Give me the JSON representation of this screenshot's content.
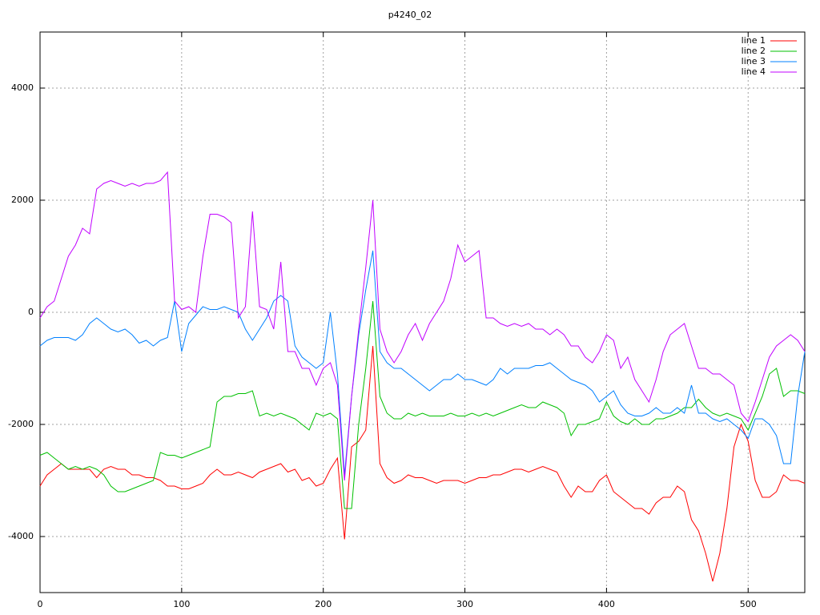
{
  "chart_data": {
    "type": "line",
    "title": "p4240_02",
    "x": [
      0,
      5,
      10,
      15,
      20,
      25,
      30,
      35,
      40,
      45,
      50,
      55,
      60,
      65,
      70,
      75,
      80,
      85,
      90,
      95,
      100,
      105,
      110,
      115,
      120,
      125,
      130,
      135,
      140,
      145,
      150,
      155,
      160,
      165,
      170,
      175,
      180,
      185,
      190,
      195,
      200,
      205,
      210,
      215,
      220,
      225,
      230,
      235,
      240,
      245,
      250,
      255,
      260,
      265,
      270,
      275,
      280,
      285,
      290,
      295,
      300,
      305,
      310,
      315,
      320,
      325,
      330,
      335,
      340,
      345,
      350,
      355,
      360,
      365,
      370,
      375,
      380,
      385,
      390,
      395,
      400,
      405,
      410,
      415,
      420,
      425,
      430,
      435,
      440,
      445,
      450,
      455,
      460,
      465,
      470,
      475,
      480,
      485,
      490,
      495,
      500,
      505,
      510,
      515,
      520,
      525,
      530,
      535,
      540
    ],
    "series": [
      {
        "name": "line 1",
        "color": "#ff0000",
        "values": [
          -3100,
          -2900,
          -2800,
          -2700,
          -2800,
          -2800,
          -2800,
          -2800,
          -2950,
          -2800,
          -2750,
          -2800,
          -2800,
          -2900,
          -2900,
          -2950,
          -2950,
          -3000,
          -3100,
          -3100,
          -3150,
          -3150,
          -3100,
          -3050,
          -2900,
          -2800,
          -2900,
          -2900,
          -2850,
          -2900,
          -2950,
          -2850,
          -2800,
          -2750,
          -2700,
          -2850,
          -2800,
          -3000,
          -2950,
          -3100,
          -3050,
          -2800,
          -2600,
          -4050,
          -2400,
          -2300,
          -2100,
          -600,
          -2700,
          -2950,
          -3050,
          -3000,
          -2900,
          -2950,
          -2950,
          -3000,
          -3050,
          -3000,
          -3000,
          -3000,
          -3050,
          -3000,
          -2950,
          -2950,
          -2900,
          -2900,
          -2850,
          -2800,
          -2800,
          -2850,
          -2800,
          -2750,
          -2800,
          -2850,
          -3100,
          -3300,
          -3100,
          -3200,
          -3200,
          -3000,
          -2900,
          -3200,
          -3300,
          -3400,
          -3500,
          -3500,
          -3600,
          -3400,
          -3300,
          -3300,
          -3100,
          -3200,
          -3700,
          -3900,
          -4300,
          -4800,
          -4300,
          -3500,
          -2400,
          -2000,
          -2300,
          -3000,
          -3300,
          -3300,
          -3200,
          -2900,
          -3000,
          -3000,
          -3050
        ]
      },
      {
        "name": "line 2",
        "color": "#00c000",
        "values": [
          -2550,
          -2500,
          -2600,
          -2700,
          -2800,
          -2750,
          -2800,
          -2750,
          -2800,
          -2900,
          -3100,
          -3200,
          -3200,
          -3150,
          -3100,
          -3050,
          -3000,
          -2500,
          -2550,
          -2550,
          -2600,
          -2550,
          -2500,
          -2450,
          -2400,
          -1600,
          -1500,
          -1500,
          -1450,
          -1450,
          -1400,
          -1850,
          -1800,
          -1850,
          -1800,
          -1850,
          -1900,
          -2000,
          -2100,
          -1800,
          -1850,
          -1800,
          -1900,
          -3500,
          -3500,
          -2000,
          -1000,
          200,
          -1500,
          -1800,
          -1900,
          -1900,
          -1800,
          -1850,
          -1800,
          -1850,
          -1850,
          -1850,
          -1800,
          -1850,
          -1850,
          -1800,
          -1850,
          -1800,
          -1850,
          -1800,
          -1750,
          -1700,
          -1650,
          -1700,
          -1700,
          -1600,
          -1650,
          -1700,
          -1800,
          -2200,
          -2000,
          -2000,
          -1950,
          -1900,
          -1600,
          -1850,
          -1950,
          -2000,
          -1900,
          -2000,
          -2000,
          -1900,
          -1900,
          -1850,
          -1800,
          -1700,
          -1700,
          -1550,
          -1700,
          -1800,
          -1850,
          -1800,
          -1850,
          -1900,
          -2100,
          -1800,
          -1500,
          -1100,
          -1000,
          -1500,
          -1400,
          -1400,
          -1450
        ]
      },
      {
        "name": "line 3",
        "color": "#0080ff",
        "values": [
          -600,
          -500,
          -450,
          -450,
          -450,
          -500,
          -400,
          -200,
          -100,
          -200,
          -300,
          -350,
          -300,
          -400,
          -550,
          -500,
          -600,
          -500,
          -450,
          200,
          -700,
          -200,
          -50,
          100,
          50,
          50,
          100,
          50,
          0,
          -300,
          -500,
          -300,
          -100,
          200,
          300,
          200,
          -600,
          -800,
          -900,
          -1000,
          -900,
          0,
          -1100,
          -2900,
          -1500,
          -400,
          400,
          1100,
          -700,
          -900,
          -1000,
          -1000,
          -1100,
          -1200,
          -1300,
          -1400,
          -1300,
          -1200,
          -1200,
          -1100,
          -1200,
          -1200,
          -1250,
          -1300,
          -1200,
          -1000,
          -1100,
          -1000,
          -1000,
          -1000,
          -950,
          -950,
          -900,
          -1000,
          -1100,
          -1200,
          -1250,
          -1300,
          -1400,
          -1600,
          -1500,
          -1400,
          -1650,
          -1800,
          -1850,
          -1850,
          -1800,
          -1700,
          -1800,
          -1800,
          -1700,
          -1800,
          -1300,
          -1800,
          -1800,
          -1900,
          -1950,
          -1900,
          -2000,
          -2100,
          -2250,
          -1900,
          -1900,
          -2000,
          -2200,
          -2700,
          -2700,
          -1500,
          -700
        ]
      },
      {
        "name": "line 4",
        "color": "#c000ff",
        "values": [
          -100,
          100,
          200,
          600,
          1000,
          1200,
          1500,
          1400,
          2200,
          2300,
          2350,
          2300,
          2250,
          2300,
          2250,
          2300,
          2300,
          2350,
          2500,
          200,
          50,
          100,
          0,
          1000,
          1750,
          1750,
          1700,
          1600,
          -100,
          100,
          1800,
          100,
          50,
          -300,
          900,
          -700,
          -700,
          -1000,
          -1000,
          -1300,
          -1000,
          -900,
          -1300,
          -3000,
          -1500,
          -300,
          800,
          2000,
          -300,
          -700,
          -900,
          -700,
          -400,
          -200,
          -500,
          -200,
          0,
          200,
          600,
          1200,
          900,
          1000,
          1100,
          -100,
          -100,
          -200,
          -250,
          -200,
          -250,
          -200,
          -300,
          -300,
          -400,
          -300,
          -400,
          -600,
          -600,
          -800,
          -900,
          -700,
          -400,
          -500,
          -1000,
          -800,
          -1200,
          -1400,
          -1600,
          -1200,
          -700,
          -400,
          -300,
          -200,
          -600,
          -1000,
          -1000,
          -1100,
          -1100,
          -1200,
          -1300,
          -1800,
          -1950,
          -1600,
          -1200,
          -800,
          -600,
          -500,
          -400,
          -500,
          -700
        ]
      }
    ],
    "xlim": [
      0,
      540
    ],
    "ylim": [
      -5000,
      5000
    ],
    "xticks": [
      0,
      100,
      200,
      300,
      400,
      500
    ],
    "yticks": [
      -4000,
      -2000,
      0,
      2000,
      4000
    ],
    "grid": true,
    "legend": "top-right"
  }
}
